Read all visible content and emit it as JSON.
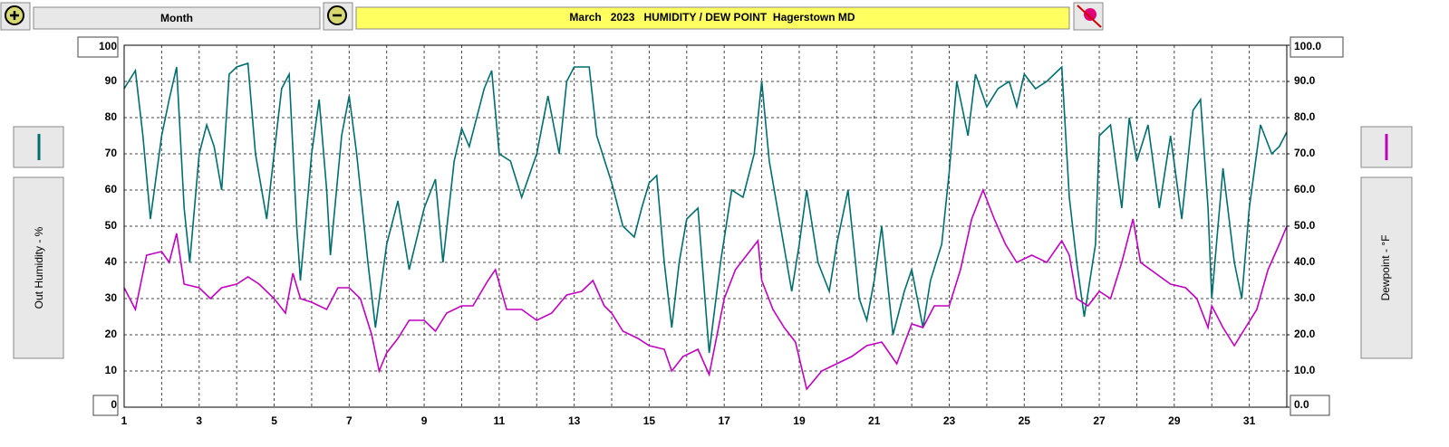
{
  "toolbar": {
    "range_button": "Month"
  },
  "chart_data": {
    "type": "line",
    "title": "March   2023   HUMIDITY / DEW POINT  Hagerstown MD",
    "ylabel": "Out Humidity - %",
    "y2label": "Dewpoint - °F",
    "xlim": [
      1,
      32
    ],
    "xticks": [
      1,
      3,
      5,
      7,
      9,
      11,
      13,
      15,
      17,
      19,
      21,
      23,
      25,
      27,
      29,
      31
    ],
    "xminor": [
      2,
      4,
      6,
      8,
      10,
      12,
      14,
      16,
      18,
      20,
      22,
      24,
      26,
      28,
      30,
      32
    ],
    "ylim": [
      0,
      100
    ],
    "yticks": [
      0,
      10,
      20,
      30,
      40,
      50,
      60,
      70,
      80,
      90,
      100
    ],
    "y2lim": [
      0,
      100
    ],
    "y2ticks": [
      {
        "value": 0,
        "label": "0.0"
      },
      {
        "value": 10,
        "label": "10.0"
      },
      {
        "value": 20,
        "label": "20.0"
      },
      {
        "value": 30,
        "label": "30.0"
      },
      {
        "value": 40,
        "label": "40.0"
      },
      {
        "value": 50,
        "label": "50.0"
      },
      {
        "value": 60,
        "label": "60.0"
      },
      {
        "value": 70,
        "label": "70.0"
      },
      {
        "value": 80,
        "label": "80.0"
      },
      {
        "value": 90,
        "label": "90.0"
      },
      {
        "value": 100,
        "label": "100.0"
      }
    ],
    "grid": true,
    "series": [
      {
        "name": "Out Humidity",
        "color": "#006e6e",
        "x": [
          1.0,
          1.3,
          1.5,
          1.7,
          2.0,
          2.2,
          2.4,
          2.6,
          2.75,
          3.0,
          3.2,
          3.4,
          3.6,
          3.8,
          4.0,
          4.3,
          4.5,
          4.8,
          5.0,
          5.2,
          5.4,
          5.6,
          5.7,
          6.0,
          6.2,
          6.4,
          6.5,
          6.8,
          7.0,
          7.2,
          7.5,
          7.7,
          8.0,
          8.3,
          8.6,
          9.0,
          9.3,
          9.5,
          9.8,
          10.0,
          10.2,
          10.6,
          10.8,
          11.0,
          11.3,
          11.6,
          12.0,
          12.3,
          12.6,
          12.8,
          13.0,
          13.4,
          13.6,
          14.0,
          14.3,
          14.6,
          14.8,
          15.0,
          15.2,
          15.4,
          15.6,
          15.8,
          16.0,
          16.3,
          16.6,
          16.9,
          17.2,
          17.5,
          17.8,
          18.0,
          18.2,
          18.5,
          18.8,
          19.0,
          19.2,
          19.5,
          19.8,
          20.0,
          20.3,
          20.6,
          20.8,
          21.0,
          21.2,
          21.5,
          21.8,
          22.0,
          22.3,
          22.5,
          22.8,
          23.0,
          23.2,
          23.5,
          23.7,
          24.0,
          24.3,
          24.6,
          24.8,
          25.0,
          25.3,
          25.6,
          25.8,
          26.0,
          26.2,
          26.4,
          26.6,
          26.9,
          27.0,
          27.3,
          27.6,
          27.8,
          28.0,
          28.3,
          28.6,
          28.9,
          29.2,
          29.5,
          29.7,
          29.9,
          30.0,
          30.3,
          30.6,
          30.8,
          31.0,
          31.3,
          31.6,
          31.8,
          32.0
        ],
        "values": [
          88,
          93,
          75,
          52,
          75,
          85,
          94,
          55,
          40,
          70,
          78,
          72,
          60,
          92,
          94,
          95,
          70,
          52,
          70,
          88,
          92,
          50,
          35,
          70,
          85,
          60,
          42,
          75,
          86,
          70,
          40,
          22,
          45,
          57,
          38,
          55,
          63,
          40,
          68,
          77,
          72,
          88,
          93,
          70,
          68,
          58,
          70,
          86,
          70,
          90,
          94,
          94,
          75,
          62,
          50,
          47,
          55,
          62,
          64,
          40,
          22,
          40,
          52,
          55,
          15,
          40,
          60,
          58,
          70,
          90,
          68,
          50,
          32,
          45,
          60,
          40,
          32,
          45,
          60,
          30,
          24,
          35,
          50,
          20,
          32,
          38,
          22,
          35,
          45,
          65,
          90,
          75,
          92,
          83,
          88,
          90,
          83,
          92,
          88,
          90,
          92,
          94,
          58,
          40,
          25,
          45,
          75,
          78,
          55,
          80,
          68,
          78,
          55,
          75,
          52,
          82,
          85,
          55,
          30,
          66,
          40,
          30,
          55,
          78,
          70,
          72,
          76
        ]
      },
      {
        "name": "Dewpoint",
        "color": "#c000c0",
        "axis": "y2",
        "x": [
          1.0,
          1.3,
          1.6,
          2.0,
          2.2,
          2.4,
          2.6,
          3.0,
          3.3,
          3.6,
          4.0,
          4.3,
          4.6,
          5.0,
          5.3,
          5.5,
          5.7,
          6.0,
          6.4,
          6.7,
          7.0,
          7.3,
          7.6,
          7.8,
          8.0,
          8.3,
          8.6,
          9.0,
          9.3,
          9.6,
          10.0,
          10.3,
          10.7,
          10.9,
          11.2,
          11.6,
          12.0,
          12.4,
          12.8,
          13.2,
          13.5,
          13.8,
          14.0,
          14.3,
          14.7,
          15.0,
          15.4,
          15.6,
          15.9,
          16.3,
          16.6,
          17.0,
          17.3,
          17.6,
          17.9,
          18.0,
          18.3,
          18.6,
          18.9,
          19.2,
          19.6,
          20.0,
          20.4,
          20.8,
          21.2,
          21.6,
          22.0,
          22.3,
          22.6,
          23.0,
          23.3,
          23.6,
          23.9,
          24.2,
          24.5,
          24.8,
          25.2,
          25.6,
          26.0,
          26.2,
          26.4,
          26.7,
          27.0,
          27.3,
          27.6,
          27.9,
          28.1,
          28.5,
          28.9,
          29.3,
          29.6,
          29.9,
          30.0,
          30.3,
          30.6,
          30.9,
          31.2,
          31.5,
          31.8,
          32.0
        ],
        "values": [
          33,
          27,
          42,
          43,
          40,
          48,
          34,
          33,
          30,
          33,
          34,
          36,
          34,
          30,
          26,
          37,
          30,
          29,
          27,
          33,
          33,
          30,
          20,
          10,
          15,
          19,
          24,
          24,
          21,
          26,
          28,
          28,
          35,
          38,
          27,
          27,
          24,
          26,
          31,
          32,
          35,
          28,
          26,
          21,
          19,
          17,
          16,
          10,
          14,
          16,
          9,
          30,
          38,
          42,
          46,
          35,
          27,
          22,
          18,
          5,
          10,
          12,
          14,
          17,
          18,
          12,
          23,
          22,
          28,
          28,
          38,
          52,
          60,
          52,
          45,
          40,
          42,
          40,
          46,
          42,
          30,
          28,
          32,
          30,
          40,
          52,
          40,
          37,
          34,
          33,
          30,
          22,
          28,
          22,
          17,
          22,
          27,
          38,
          45,
          50
        ]
      }
    ]
  }
}
